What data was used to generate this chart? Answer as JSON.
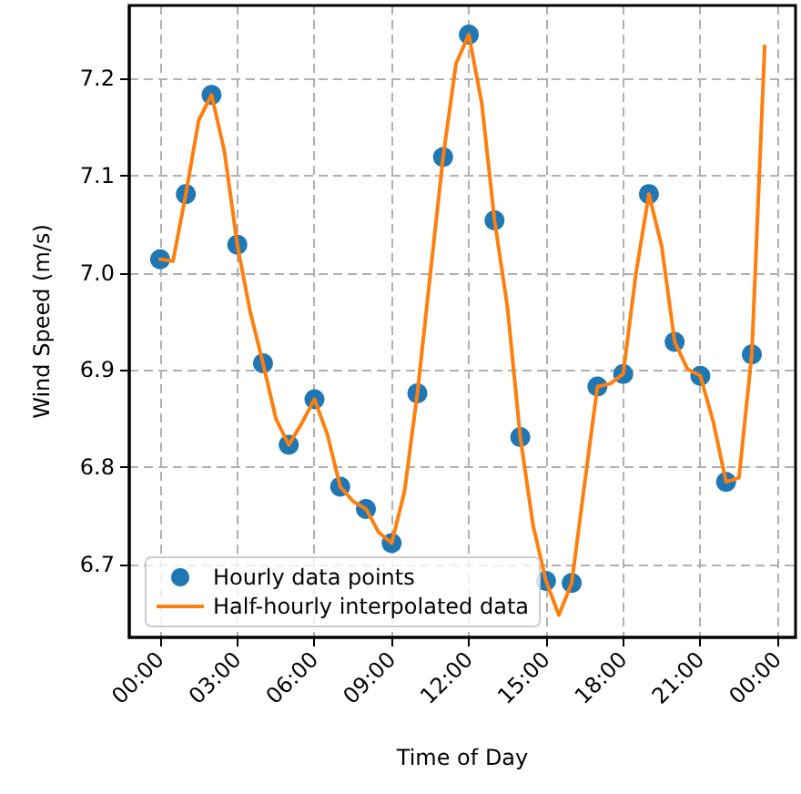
{
  "chart_data": {
    "type": "line",
    "xlabel": "Time of Day",
    "ylabel": "Wind Speed (m/s)",
    "xlim": [
      -1.2,
      24.7
    ],
    "ylim": [
      6.625,
      7.275
    ],
    "xticks": [
      {
        "value": 0,
        "label": "00:00"
      },
      {
        "value": 3,
        "label": "03:00"
      },
      {
        "value": 6,
        "label": "06:00"
      },
      {
        "value": 9,
        "label": "09:00"
      },
      {
        "value": 12,
        "label": "12:00"
      },
      {
        "value": 15,
        "label": "15:00"
      },
      {
        "value": 18,
        "label": "18:00"
      },
      {
        "value": 21,
        "label": "21:00"
      },
      {
        "value": 24,
        "label": "00:00"
      }
    ],
    "yticks": [
      6.7,
      6.8,
      6.9,
      {
        "value": 7,
        "label": "7.0"
      },
      7.1,
      7.2
    ],
    "grid": true,
    "legend": "bottom left",
    "series": [
      {
        "name": "Hourly data points",
        "type": "scatter",
        "marker": "circle",
        "color": "#1f77b4",
        "x": [
          0,
          1,
          2,
          3,
          4,
          5,
          6,
          7,
          8,
          9,
          10,
          11,
          12,
          13,
          14,
          15,
          16,
          17,
          18,
          19,
          20,
          21,
          22,
          23
        ],
        "values": [
          7.014,
          7.081,
          7.183,
          7.029,
          6.907,
          6.823,
          6.87,
          6.78,
          6.757,
          6.722,
          6.876,
          7.119,
          7.245,
          7.054,
          6.831,
          6.683,
          6.681,
          6.883,
          6.896,
          7.081,
          6.929,
          6.894,
          6.785,
          6.916
        ]
      },
      {
        "name": "Half-hourly interpolated data",
        "color": "#ff7f0e",
        "x": [
          0,
          0.5,
          1,
          1.5,
          2,
          2.5,
          3,
          3.5,
          4,
          4.5,
          5,
          5.5,
          6,
          6.5,
          7,
          7.5,
          8,
          8.5,
          9,
          9.5,
          10,
          10.5,
          11,
          11.5,
          12,
          12.5,
          13,
          13.5,
          14,
          14.5,
          15,
          15.5,
          16,
          16.5,
          17,
          17.5,
          18,
          18.5,
          19,
          19.5,
          20,
          20.5,
          21,
          21.5,
          22,
          22.5,
          23,
          23.5
        ],
        "values": [
          7.014,
          7.012,
          7.081,
          7.157,
          7.183,
          7.125,
          7.029,
          6.96,
          6.907,
          6.85,
          6.823,
          6.845,
          6.87,
          6.834,
          6.78,
          6.765,
          6.757,
          6.733,
          6.722,
          6.775,
          6.876,
          6.998,
          7.119,
          7.215,
          7.245,
          7.175,
          7.054,
          6.965,
          6.831,
          6.74,
          6.683,
          6.648,
          6.681,
          6.783,
          6.883,
          6.886,
          6.896,
          7.0,
          7.081,
          7.027,
          6.929,
          6.901,
          6.894,
          6.847,
          6.785,
          6.789,
          6.916,
          7.233
        ]
      }
    ]
  }
}
